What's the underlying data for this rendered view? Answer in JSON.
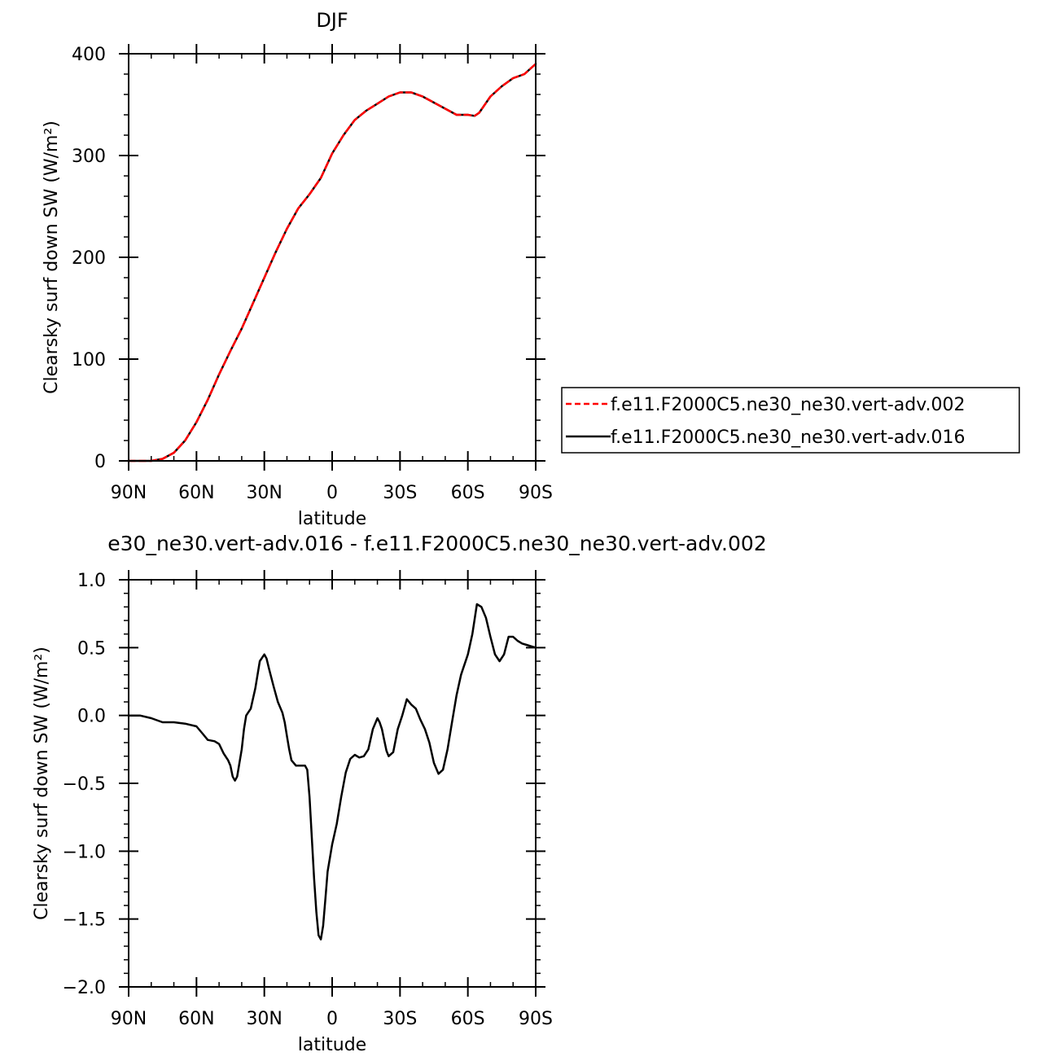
{
  "chart_data": [
    {
      "type": "line",
      "title": "DJF",
      "xlabel": "latitude",
      "ylabel": "Clearsky surf down SW (W/m²)",
      "xlim": [
        90,
        -90
      ],
      "ylim": [
        0,
        400
      ],
      "x_ticks": [
        {
          "value": 90,
          "label": "90N"
        },
        {
          "value": 60,
          "label": "60N"
        },
        {
          "value": 30,
          "label": "30N"
        },
        {
          "value": 0,
          "label": "0"
        },
        {
          "value": -30,
          "label": "30S"
        },
        {
          "value": -60,
          "label": "60S"
        },
        {
          "value": -90,
          "label": "90S"
        }
      ],
      "y_ticks": [
        {
          "value": 0,
          "label": "0"
        },
        {
          "value": 100,
          "label": "100"
        },
        {
          "value": 200,
          "label": "200"
        },
        {
          "value": 300,
          "label": "300"
        },
        {
          "value": 400,
          "label": "400"
        }
      ],
      "legend_position": "right",
      "x": [
        90,
        85,
        80,
        75,
        70,
        65,
        60,
        55,
        50,
        45,
        40,
        35,
        30,
        25,
        20,
        15,
        10,
        5,
        0,
        -5,
        -10,
        -15,
        -20,
        -25,
        -30,
        -35,
        -40,
        -45,
        -50,
        -55,
        -60,
        -63,
        -65,
        -70,
        -75,
        -80,
        -85,
        -90
      ],
      "series": [
        {
          "name": "f.e11.F2000C5.ne30_ne30.vert-adv.002",
          "color": "#ff0000",
          "dash": "dashed",
          "values": [
            0,
            0,
            0,
            2,
            8,
            20,
            38,
            60,
            85,
            108,
            130,
            155,
            180,
            205,
            228,
            248,
            262,
            278,
            302,
            320,
            335,
            344,
            351,
            358,
            362,
            362,
            358,
            352,
            346,
            340,
            340,
            339,
            342,
            358,
            368,
            376,
            380,
            390
          ]
        },
        {
          "name": "f.e11.F2000C5.ne30_ne30.vert-adv.016",
          "color": "#000000",
          "dash": "solid",
          "values": [
            0,
            0,
            0,
            2,
            8,
            20,
            38,
            60,
            85,
            108,
            130,
            155,
            180,
            205,
            228,
            248,
            262,
            278,
            302,
            320,
            335,
            344,
            351,
            358,
            362,
            362,
            358,
            352,
            346,
            340,
            340,
            339,
            342,
            358,
            368,
            376,
            380,
            390
          ]
        }
      ]
    },
    {
      "type": "line",
      "title": "e30_ne30.vert-adv.016 - f.e11.F2000C5.ne30_ne30.vert-adv.002",
      "xlabel": "latitude",
      "ylabel": "Clearsky surf down SW (W/m²)",
      "xlim": [
        90,
        -90
      ],
      "ylim": [
        -2.0,
        1.0
      ],
      "x_ticks": [
        {
          "value": 90,
          "label": "90N"
        },
        {
          "value": 60,
          "label": "60N"
        },
        {
          "value": 30,
          "label": "30N"
        },
        {
          "value": 0,
          "label": "0"
        },
        {
          "value": -30,
          "label": "30S"
        },
        {
          "value": -60,
          "label": "60S"
        },
        {
          "value": -90,
          "label": "90S"
        }
      ],
      "y_ticks": [
        {
          "value": -2.0,
          "label": "−2.0"
        },
        {
          "value": -1.5,
          "label": "−1.5"
        },
        {
          "value": -1.0,
          "label": "−1.0"
        },
        {
          "value": -0.5,
          "label": "−0.5"
        },
        {
          "value": 0.0,
          "label": "0.0"
        },
        {
          "value": 0.5,
          "label": "0.5"
        },
        {
          "value": 1.0,
          "label": "1.0"
        }
      ],
      "x": [
        90,
        85,
        80,
        75,
        70,
        65,
        60,
        57,
        55,
        52,
        50,
        48,
        46,
        45,
        44,
        43,
        42,
        41,
        40,
        39,
        38,
        36,
        34,
        32,
        30,
        29,
        28,
        26,
        24,
        22,
        21,
        20,
        19,
        18,
        16,
        14,
        12,
        11,
        10,
        9,
        8,
        7,
        6,
        5,
        4,
        3,
        2,
        0,
        -2,
        -4,
        -6,
        -8,
        -10,
        -12,
        -14,
        -16,
        -18,
        -20,
        -21,
        -22,
        -23,
        -24,
        -25,
        -27,
        -29,
        -31,
        -33,
        -35,
        -37,
        -39,
        -41,
        -43,
        -45,
        -47,
        -49,
        -51,
        -53,
        -55,
        -57,
        -60,
        -62,
        -64,
        -66,
        -68,
        -70,
        -72,
        -74,
        -76,
        -78,
        -80,
        -82,
        -84,
        -86,
        -88,
        -90
      ],
      "series": [
        {
          "name": "",
          "color": "#000000",
          "dash": "solid",
          "values": [
            0.0,
            0.0,
            -0.02,
            -0.05,
            -0.05,
            -0.06,
            -0.08,
            -0.14,
            -0.18,
            -0.19,
            -0.21,
            -0.28,
            -0.33,
            -0.37,
            -0.45,
            -0.48,
            -0.45,
            -0.35,
            -0.25,
            -0.1,
            0.0,
            0.05,
            0.2,
            0.4,
            0.45,
            0.42,
            0.35,
            0.22,
            0.1,
            0.02,
            -0.05,
            -0.15,
            -0.25,
            -0.33,
            -0.37,
            -0.37,
            -0.37,
            -0.4,
            -0.6,
            -0.9,
            -1.2,
            -1.45,
            -1.62,
            -1.65,
            -1.55,
            -1.35,
            -1.15,
            -0.95,
            -0.8,
            -0.6,
            -0.42,
            -0.32,
            -0.29,
            -0.31,
            -0.3,
            -0.25,
            -0.1,
            -0.02,
            -0.05,
            -0.1,
            -0.18,
            -0.26,
            -0.3,
            -0.27,
            -0.1,
            0.0,
            0.12,
            0.08,
            0.05,
            -0.03,
            -0.1,
            -0.2,
            -0.35,
            -0.43,
            -0.4,
            -0.25,
            -0.05,
            0.15,
            0.3,
            0.45,
            0.6,
            0.82,
            0.8,
            0.72,
            0.58,
            0.45,
            0.4,
            0.45,
            0.58,
            0.58,
            0.55,
            0.53,
            0.52,
            0.51,
            0.5
          ]
        }
      ]
    }
  ]
}
